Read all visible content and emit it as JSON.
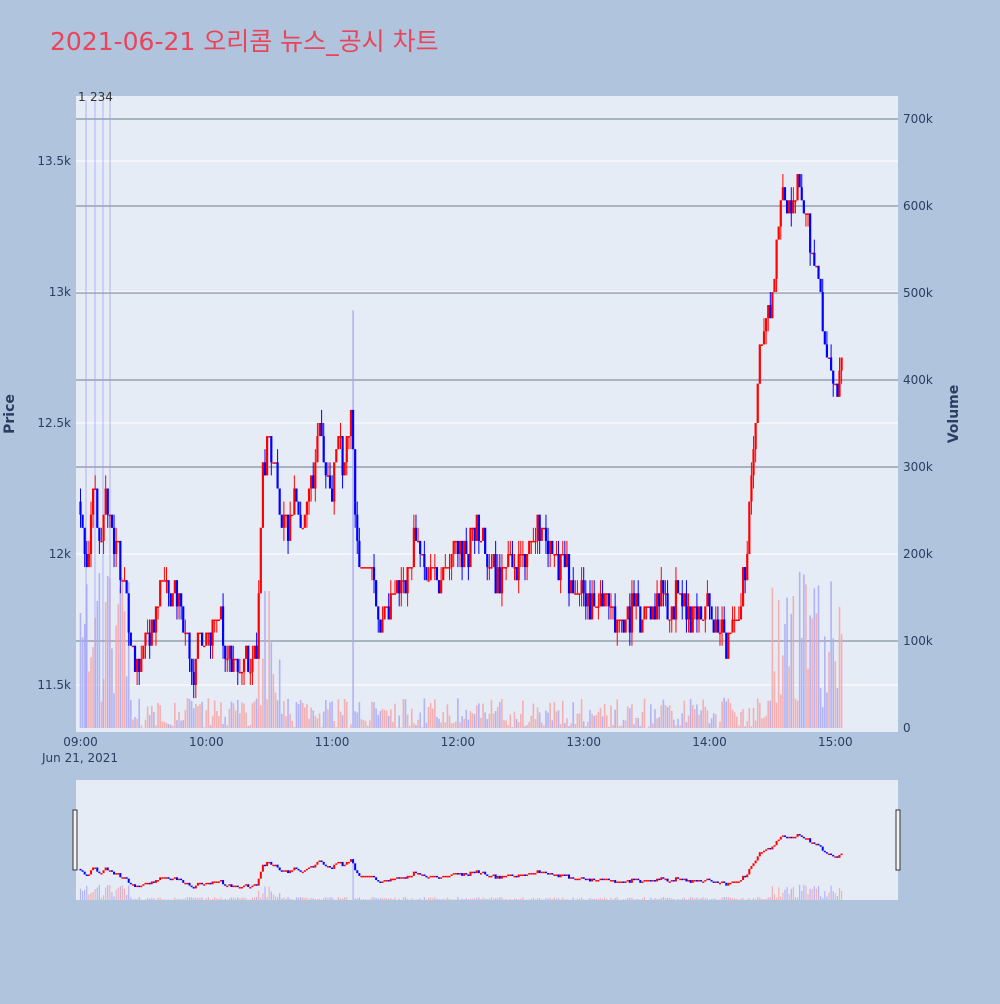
{
  "title": "2021-06-21 오리콤 뉴스_공시 차트",
  "colors": {
    "page_bg": "#b0c4de",
    "plot_bg": "#e5ecf6",
    "up": "#ff0000",
    "down": "#0000ff",
    "title": "#e8445a",
    "axis_text": "#2a3f5f"
  },
  "chart_data": {
    "type": "candlestick",
    "date_label": "Jun 21, 2021",
    "x_ticks": [
      "09:00",
      "10:00",
      "11:00",
      "12:00",
      "13:00",
      "14:00",
      "15:00"
    ],
    "x_range": [
      "09:00",
      "15:30"
    ],
    "price_axis": {
      "title": "Price",
      "ticks": [
        "11.5k",
        "12k",
        "12.5k",
        "13k",
        "13.5k"
      ],
      "range": [
        11300,
        13700
      ]
    },
    "volume_axis": {
      "title": "Volume",
      "ticks": [
        "0",
        "100k",
        "200k",
        "300k",
        "400k",
        "500k",
        "600k",
        "700k"
      ],
      "range": [
        0,
        700000
      ]
    },
    "news_markers": [
      "1",
      "2",
      "3",
      "4"
    ],
    "price_path": [
      [
        "09:00",
        12200
      ],
      [
        "09:03",
        11900
      ],
      [
        "09:06",
        12300
      ],
      [
        "09:09",
        12000
      ],
      [
        "09:12",
        12300
      ],
      [
        "09:15",
        12050
      ],
      [
        "09:18",
        12000
      ],
      [
        "09:21",
        11850
      ],
      [
        "09:24",
        11650
      ],
      [
        "09:27",
        11550
      ],
      [
        "09:30",
        11700
      ],
      [
        "09:33",
        11650
      ],
      [
        "09:36",
        11750
      ],
      [
        "09:39",
        11900
      ],
      [
        "09:42",
        11800
      ],
      [
        "09:45",
        11850
      ],
      [
        "09:48",
        11750
      ],
      [
        "09:51",
        11650
      ],
      [
        "09:54",
        11550
      ],
      [
        "09:57",
        11700
      ],
      [
        "10:00",
        11650
      ],
      [
        "10:03",
        11700
      ],
      [
        "10:06",
        11800
      ],
      [
        "10:09",
        11650
      ],
      [
        "10:12",
        11600
      ],
      [
        "10:15",
        11520
      ],
      [
        "10:18",
        11600
      ],
      [
        "10:21",
        11550
      ],
      [
        "10:24",
        11650
      ],
      [
        "10:27",
        12300
      ],
      [
        "10:30",
        12450
      ],
      [
        "10:33",
        12300
      ],
      [
        "10:36",
        12150
      ],
      [
        "10:39",
        12050
      ],
      [
        "10:42",
        12200
      ],
      [
        "10:45",
        12100
      ],
      [
        "10:48",
        12200
      ],
      [
        "10:51",
        12300
      ],
      [
        "10:54",
        12500
      ],
      [
        "10:57",
        12350
      ],
      [
        "11:00",
        12250
      ],
      [
        "11:03",
        12450
      ],
      [
        "11:06",
        12300
      ],
      [
        "11:09",
        12550
      ],
      [
        "11:12",
        12000
      ],
      [
        "11:15",
        11900
      ],
      [
        "11:18",
        11950
      ],
      [
        "11:21",
        11800
      ],
      [
        "11:24",
        11750
      ],
      [
        "11:27",
        11800
      ],
      [
        "11:30",
        11850
      ],
      [
        "11:33",
        11900
      ],
      [
        "11:36",
        11950
      ],
      [
        "11:39",
        12050
      ],
      [
        "11:42",
        12000
      ],
      [
        "11:45",
        11950
      ],
      [
        "11:48",
        11900
      ],
      [
        "11:51",
        11850
      ],
      [
        "11:54",
        11900
      ],
      [
        "11:57",
        11950
      ],
      [
        "12:00",
        12050
      ],
      [
        "12:03",
        12000
      ],
      [
        "12:06",
        12050
      ],
      [
        "12:09",
        12100
      ],
      [
        "12:12",
        12050
      ],
      [
        "12:15",
        12000
      ],
      [
        "12:18",
        11900
      ],
      [
        "12:21",
        11900
      ],
      [
        "12:24",
        11950
      ],
      [
        "12:27",
        11900
      ],
      [
        "12:30",
        11950
      ],
      [
        "12:33",
        12050
      ],
      [
        "12:36",
        12100
      ],
      [
        "12:39",
        12050
      ],
      [
        "12:42",
        12050
      ],
      [
        "12:45",
        12000
      ],
      [
        "12:48",
        11950
      ],
      [
        "12:51",
        11950
      ],
      [
        "12:54",
        11900
      ],
      [
        "12:57",
        11850
      ],
      [
        "13:00",
        11850
      ],
      [
        "13:03",
        11800
      ],
      [
        "13:06",
        11850
      ],
      [
        "13:09",
        11800
      ],
      [
        "13:12",
        11800
      ],
      [
        "13:15",
        11750
      ],
      [
        "13:18",
        11700
      ],
      [
        "13:21",
        11750
      ],
      [
        "13:24",
        11800
      ],
      [
        "13:27",
        11750
      ],
      [
        "13:30",
        11750
      ],
      [
        "13:33",
        11800
      ],
      [
        "13:36",
        11850
      ],
      [
        "13:39",
        11800
      ],
      [
        "13:42",
        11800
      ],
      [
        "13:45",
        11850
      ],
      [
        "13:48",
        11800
      ],
      [
        "13:51",
        11750
      ],
      [
        "13:54",
        11800
      ],
      [
        "13:57",
        11800
      ],
      [
        "14:00",
        11800
      ],
      [
        "14:03",
        11750
      ],
      [
        "14:06",
        11700
      ],
      [
        "14:09",
        11650
      ],
      [
        "14:12",
        11750
      ],
      [
        "14:15",
        11800
      ],
      [
        "14:18",
        12000
      ],
      [
        "14:21",
        12400
      ],
      [
        "14:24",
        12800
      ],
      [
        "14:27",
        12900
      ],
      [
        "14:30",
        13000
      ],
      [
        "14:33",
        13300
      ],
      [
        "14:36",
        13400
      ],
      [
        "14:39",
        13300
      ],
      [
        "14:42",
        13450
      ],
      [
        "14:45",
        13350
      ],
      [
        "14:48",
        13200
      ],
      [
        "14:51",
        13100
      ],
      [
        "14:54",
        12900
      ],
      [
        "14:57",
        12700
      ],
      [
        "15:00",
        12600
      ],
      [
        "15:03",
        12750
      ]
    ]
  }
}
